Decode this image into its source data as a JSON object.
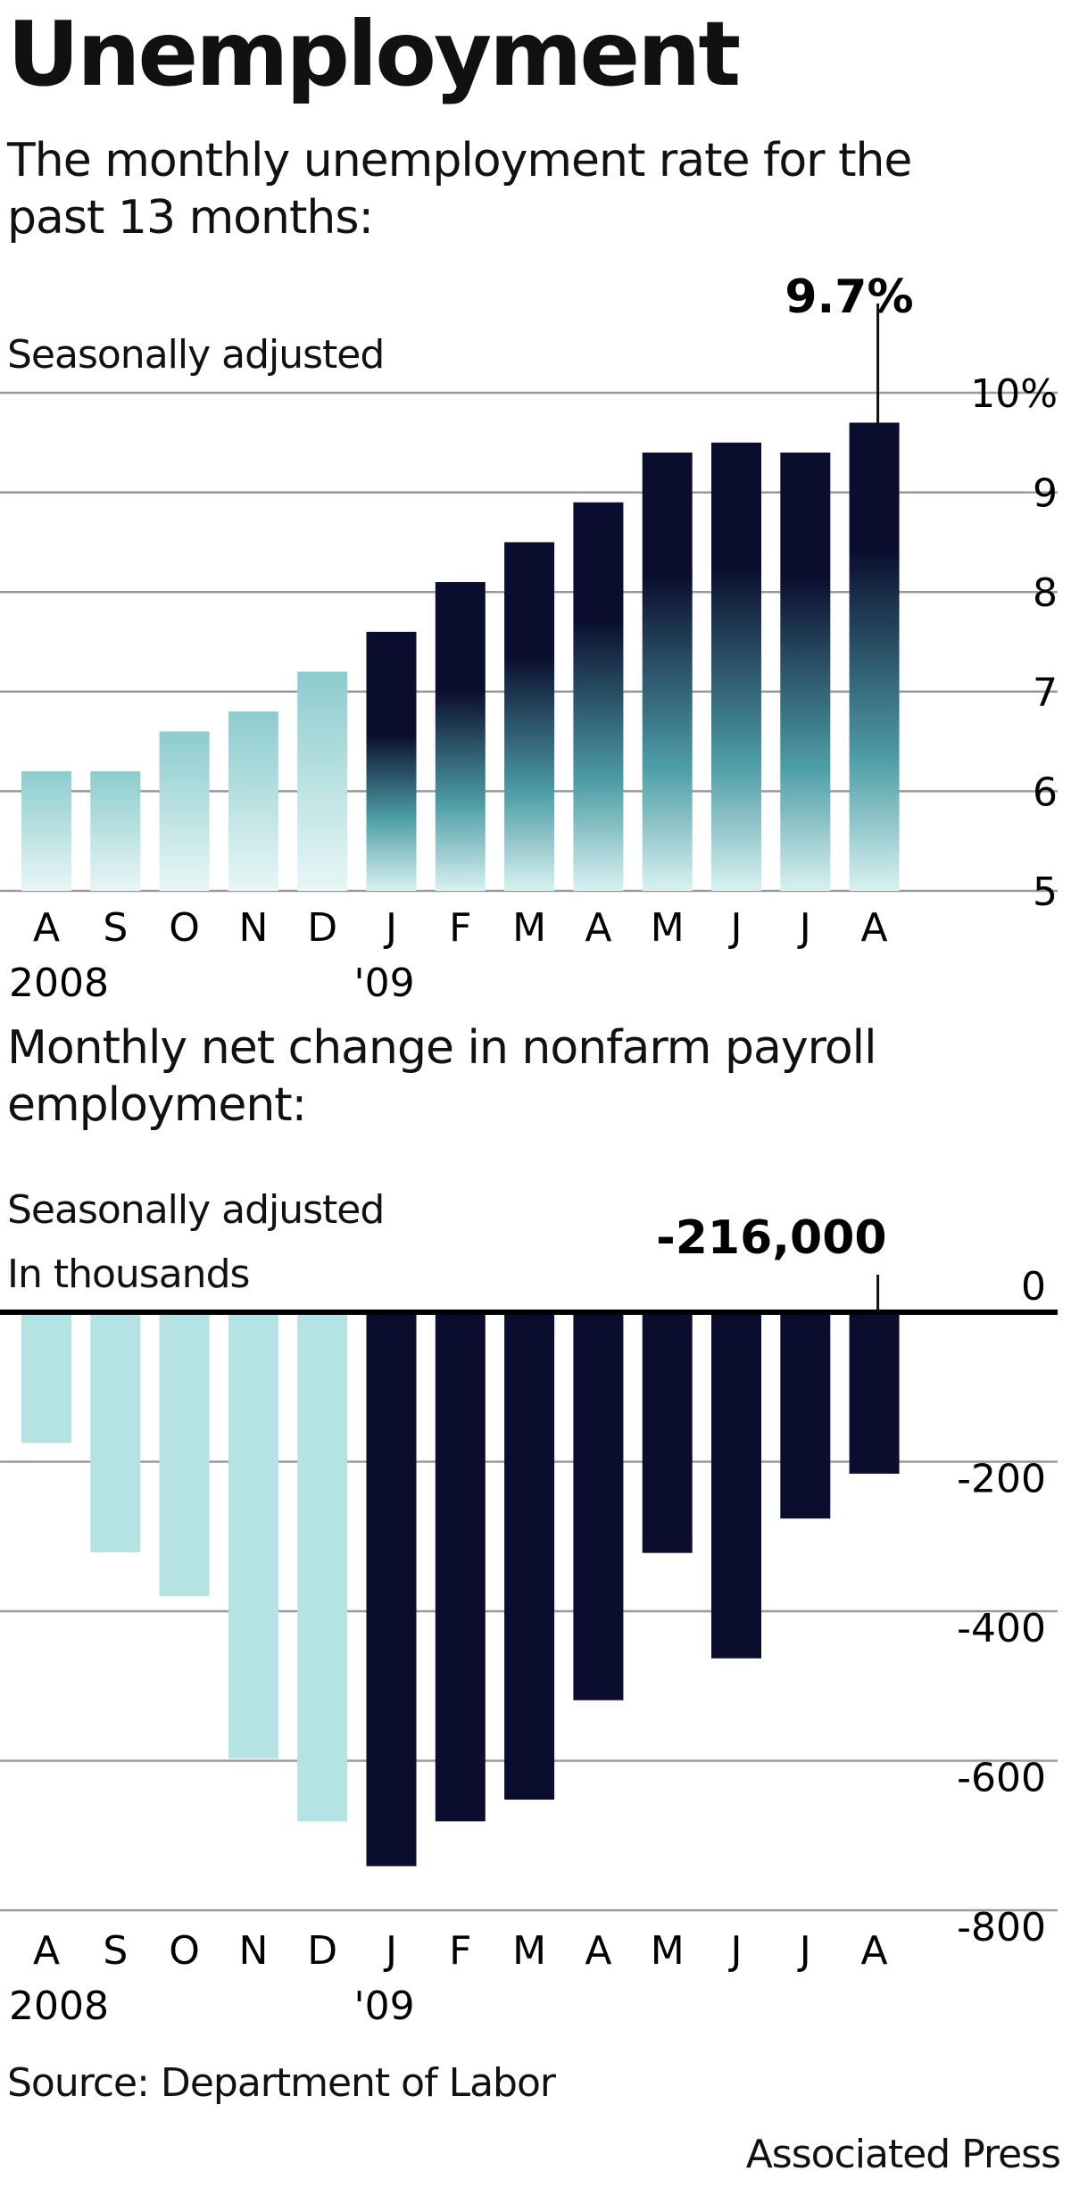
{
  "title": "Unemployment",
  "chart_data": [
    {
      "type": "bar",
      "title": "The monthly unemployment rate for the past 13 months:",
      "subtitle": "Seasonally adjusted",
      "categories": [
        "A",
        "S",
        "O",
        "N",
        "D",
        "J",
        "F",
        "M",
        "A",
        "M",
        "J",
        "J",
        "A"
      ],
      "year_labels": [
        {
          "index": 0,
          "label": "2008"
        },
        {
          "index": 5,
          "label": "'09"
        }
      ],
      "values": [
        6.2,
        6.2,
        6.6,
        6.8,
        7.2,
        7.6,
        8.1,
        8.5,
        8.9,
        9.4,
        9.5,
        9.4,
        9.7
      ],
      "ylim": [
        5,
        10
      ],
      "yticks": [
        5,
        6,
        7,
        8,
        9,
        10
      ],
      "ytick_labels": [
        "5",
        "6",
        "7",
        "8",
        "9",
        "10%"
      ],
      "grid": true,
      "highlight": {
        "index": 12,
        "label": "9.7%"
      },
      "colors": {
        "light": "#a9dcdc",
        "dark": "#0a0d2e",
        "teal": "#4e9ea6"
      }
    },
    {
      "type": "bar",
      "title": "Monthly net change in nonfarm payroll employment:",
      "subtitle": "Seasonally adjusted",
      "units": "In thousands",
      "categories": [
        "A",
        "S",
        "O",
        "N",
        "D",
        "J",
        "F",
        "M",
        "A",
        "M",
        "J",
        "J",
        "A"
      ],
      "year_labels": [
        {
          "index": 0,
          "label": "2008"
        },
        {
          "index": 5,
          "label": "'09"
        }
      ],
      "values": [
        -175,
        -321,
        -380,
        -597,
        -681,
        -741,
        -681,
        -652,
        -519,
        -322,
        -463,
        -276,
        -216
      ],
      "ylim": [
        -800,
        0
      ],
      "yticks": [
        0,
        -200,
        -400,
        -600,
        -800
      ],
      "ytick_labels": [
        "0",
        "-200",
        "-400",
        "-600",
        "-800"
      ],
      "grid": true,
      "highlight": {
        "index": 12,
        "label": "-216,000"
      },
      "colors": {
        "light": "#b5e3e3",
        "dark": "#0a0d2e"
      }
    }
  ],
  "source": "Source: Department of Labor",
  "credit": "Associated Press"
}
